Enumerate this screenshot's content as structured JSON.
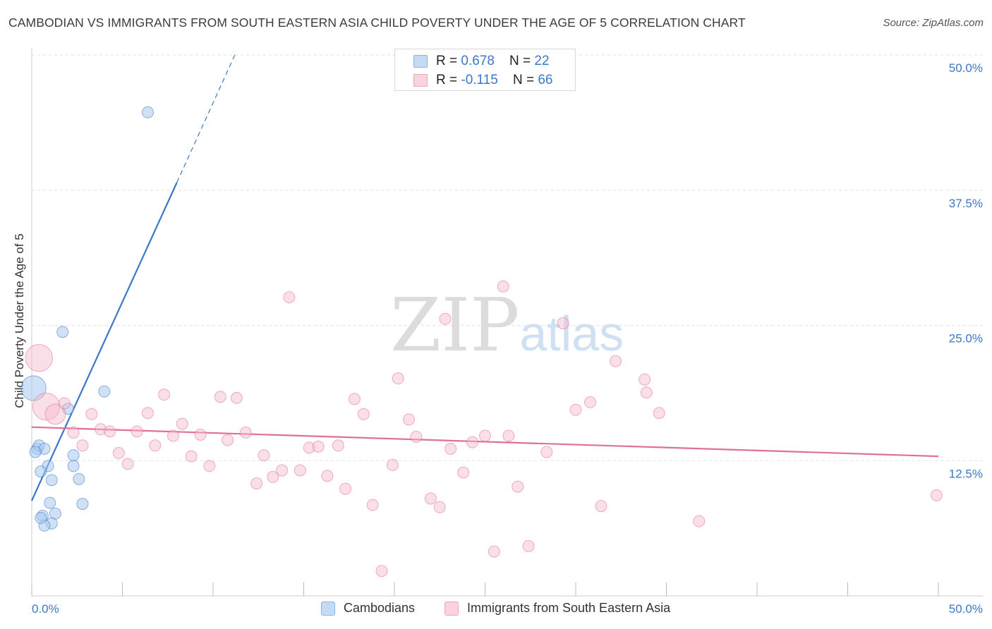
{
  "header": {
    "title": "CAMBODIAN VS IMMIGRANTS FROM SOUTH EASTERN ASIA CHILD POVERTY UNDER THE AGE OF 5 CORRELATION CHART",
    "source": "Source: ZipAtlas.com"
  },
  "watermark": {
    "zip": "ZIP",
    "atlas": "atlas"
  },
  "legend": {
    "series1": {
      "r_label": "R = ",
      "r_value": "0.678",
      "n_label": "N = ",
      "n_value": "22",
      "color": "#a9c9ef"
    },
    "series2": {
      "r_label": "R = ",
      "r_value": "-0.115",
      "n_label": "N = ",
      "n_value": "66",
      "color": "#f6b8cb"
    }
  },
  "bottom_legend": {
    "series1": "Cambodians",
    "series2": "Immigrants from South Eastern Asia"
  },
  "chart_data": {
    "type": "scatter",
    "title": "CAMBODIAN VS IMMIGRANTS FROM SOUTH EASTERN ASIA CHILD POVERTY UNDER THE AGE OF 5 CORRELATION CHART",
    "xlabel": "",
    "ylabel": "Child Poverty Under the Age of 5",
    "xlim": [
      0,
      50
    ],
    "ylim": [
      0,
      50
    ],
    "x_tick_labels": [
      "0.0%",
      "50.0%"
    ],
    "y_ticks": [
      12.5,
      25.0,
      37.5,
      50.0
    ],
    "y_tick_labels": [
      "12.5%",
      "25.0%",
      "37.5%",
      "50.0%"
    ],
    "series": [
      {
        "name": "Cambodians",
        "color": "#3b78c8",
        "fill": "#a9c9ef",
        "trend": {
          "x0": 0,
          "y0": 8.8,
          "x1": 8.0,
          "y1": 38.2,
          "dash_to_x": 11.2,
          "dash_to_y": 50.0
        },
        "points": [
          [
            6.4,
            44.7,
            1
          ],
          [
            1.7,
            24.4,
            1
          ],
          [
            4.0,
            18.9,
            1
          ],
          [
            0.1,
            19.2,
            2.2
          ],
          [
            2.0,
            17.3,
            1
          ],
          [
            0.3,
            13.6,
            1
          ],
          [
            0.4,
            13.9,
            1
          ],
          [
            0.7,
            13.6,
            1
          ],
          [
            0.2,
            13.3,
            1
          ],
          [
            2.3,
            13.0,
            1
          ],
          [
            0.9,
            12.0,
            1
          ],
          [
            2.3,
            12.0,
            1
          ],
          [
            0.5,
            11.5,
            1
          ],
          [
            1.1,
            10.7,
            1
          ],
          [
            2.6,
            10.8,
            1
          ],
          [
            1.0,
            8.6,
            1
          ],
          [
            2.8,
            8.5,
            1
          ],
          [
            1.3,
            7.6,
            1
          ],
          [
            0.6,
            7.4,
            1
          ],
          [
            1.1,
            6.7,
            1
          ],
          [
            0.7,
            6.5,
            1
          ],
          [
            0.5,
            7.2,
            1
          ]
        ]
      },
      {
        "name": "Immigrants from South Eastern Asia",
        "color": "#e0709a",
        "fill": "#f6b8cb",
        "trend": {
          "x0": 0,
          "y0": 15.6,
          "x1": 50,
          "y1": 12.9
        },
        "points": [
          [
            0.4,
            22.0,
            2.4
          ],
          [
            0.8,
            17.5,
            2.4
          ],
          [
            1.3,
            16.8,
            1.8
          ],
          [
            1.8,
            17.8,
            1
          ],
          [
            2.3,
            15.1,
            1
          ],
          [
            2.8,
            13.9,
            1
          ],
          [
            3.3,
            16.8,
            1
          ],
          [
            3.8,
            15.4,
            1
          ],
          [
            4.3,
            15.2,
            1
          ],
          [
            4.8,
            13.2,
            1
          ],
          [
            5.3,
            12.2,
            1
          ],
          [
            5.8,
            15.2,
            1
          ],
          [
            6.4,
            16.9,
            1
          ],
          [
            6.8,
            13.9,
            1
          ],
          [
            7.3,
            18.6,
            1
          ],
          [
            7.8,
            14.8,
            1
          ],
          [
            8.3,
            15.9,
            1
          ],
          [
            8.8,
            12.9,
            1
          ],
          [
            9.3,
            14.9,
            1
          ],
          [
            9.8,
            12.0,
            1
          ],
          [
            10.4,
            18.4,
            1
          ],
          [
            10.8,
            14.4,
            1
          ],
          [
            11.3,
            18.3,
            1
          ],
          [
            11.8,
            15.1,
            1
          ],
          [
            12.4,
            10.4,
            1
          ],
          [
            12.8,
            13.0,
            1
          ],
          [
            13.3,
            11.0,
            1
          ],
          [
            13.8,
            11.6,
            1
          ],
          [
            14.2,
            27.6,
            1
          ],
          [
            14.8,
            11.6,
            1
          ],
          [
            15.3,
            13.7,
            1
          ],
          [
            15.8,
            13.8,
            1
          ],
          [
            16.3,
            11.1,
            1
          ],
          [
            16.9,
            13.9,
            1
          ],
          [
            17.3,
            9.9,
            1
          ],
          [
            17.8,
            18.2,
            1
          ],
          [
            18.3,
            16.8,
            1
          ],
          [
            18.8,
            8.4,
            1
          ],
          [
            19.3,
            2.3,
            1
          ],
          [
            19.9,
            12.1,
            1
          ],
          [
            20.2,
            20.1,
            1
          ],
          [
            20.8,
            16.3,
            1
          ],
          [
            21.2,
            14.7,
            1
          ],
          [
            22.0,
            9.0,
            1
          ],
          [
            22.5,
            8.2,
            1
          ],
          [
            22.8,
            25.6,
            1
          ],
          [
            23.1,
            13.6,
            1
          ],
          [
            23.8,
            11.4,
            1
          ],
          [
            24.3,
            14.2,
            1
          ],
          [
            25.0,
            14.8,
            1
          ],
          [
            25.5,
            4.1,
            1
          ],
          [
            26.0,
            28.6,
            1
          ],
          [
            26.3,
            14.8,
            1
          ],
          [
            26.8,
            10.1,
            1
          ],
          [
            27.4,
            4.6,
            1
          ],
          [
            28.4,
            13.3,
            1
          ],
          [
            29.3,
            25.2,
            1
          ],
          [
            30.0,
            17.2,
            1
          ],
          [
            30.8,
            17.9,
            1
          ],
          [
            31.4,
            8.3,
            1
          ],
          [
            32.2,
            21.7,
            1
          ],
          [
            33.8,
            20.0,
            1
          ],
          [
            33.9,
            18.8,
            1
          ],
          [
            34.6,
            16.9,
            1
          ],
          [
            36.8,
            6.9,
            1
          ],
          [
            49.9,
            9.3,
            1
          ]
        ]
      }
    ]
  }
}
